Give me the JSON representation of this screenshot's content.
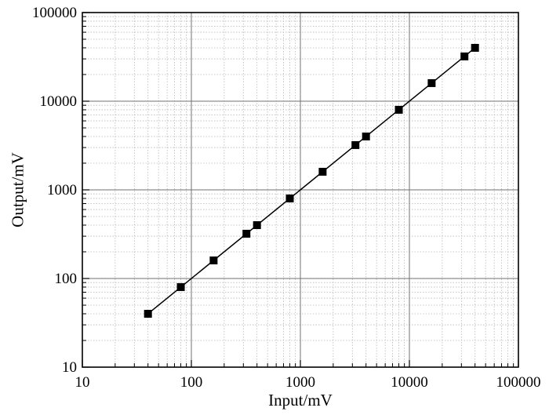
{
  "chart_data": {
    "type": "scatter",
    "xlabel": "Input/mV",
    "ylabel": "Output/mV",
    "x_scale": "log",
    "y_scale": "log",
    "xlim": [
      10,
      100000
    ],
    "ylim": [
      10,
      100000
    ],
    "x_ticks": [
      "10",
      "100",
      "1000",
      "10000",
      "100000"
    ],
    "y_ticks": [
      "10",
      "100",
      "1000",
      "10000",
      "100000"
    ],
    "grid": true,
    "minor_grid": true,
    "marker": "square",
    "trend_line": true,
    "x": [
      40,
      80,
      160,
      320,
      400,
      800,
      1600,
      3200,
      4000,
      8000,
      16000,
      32000,
      40000
    ],
    "y": [
      40,
      80,
      160,
      320,
      400,
      800,
      1600,
      3200,
      4000,
      8000,
      16000,
      32000,
      40000
    ],
    "fit_line": {
      "x": [
        40,
        40000
      ],
      "y": [
        40,
        40000
      ]
    }
  }
}
